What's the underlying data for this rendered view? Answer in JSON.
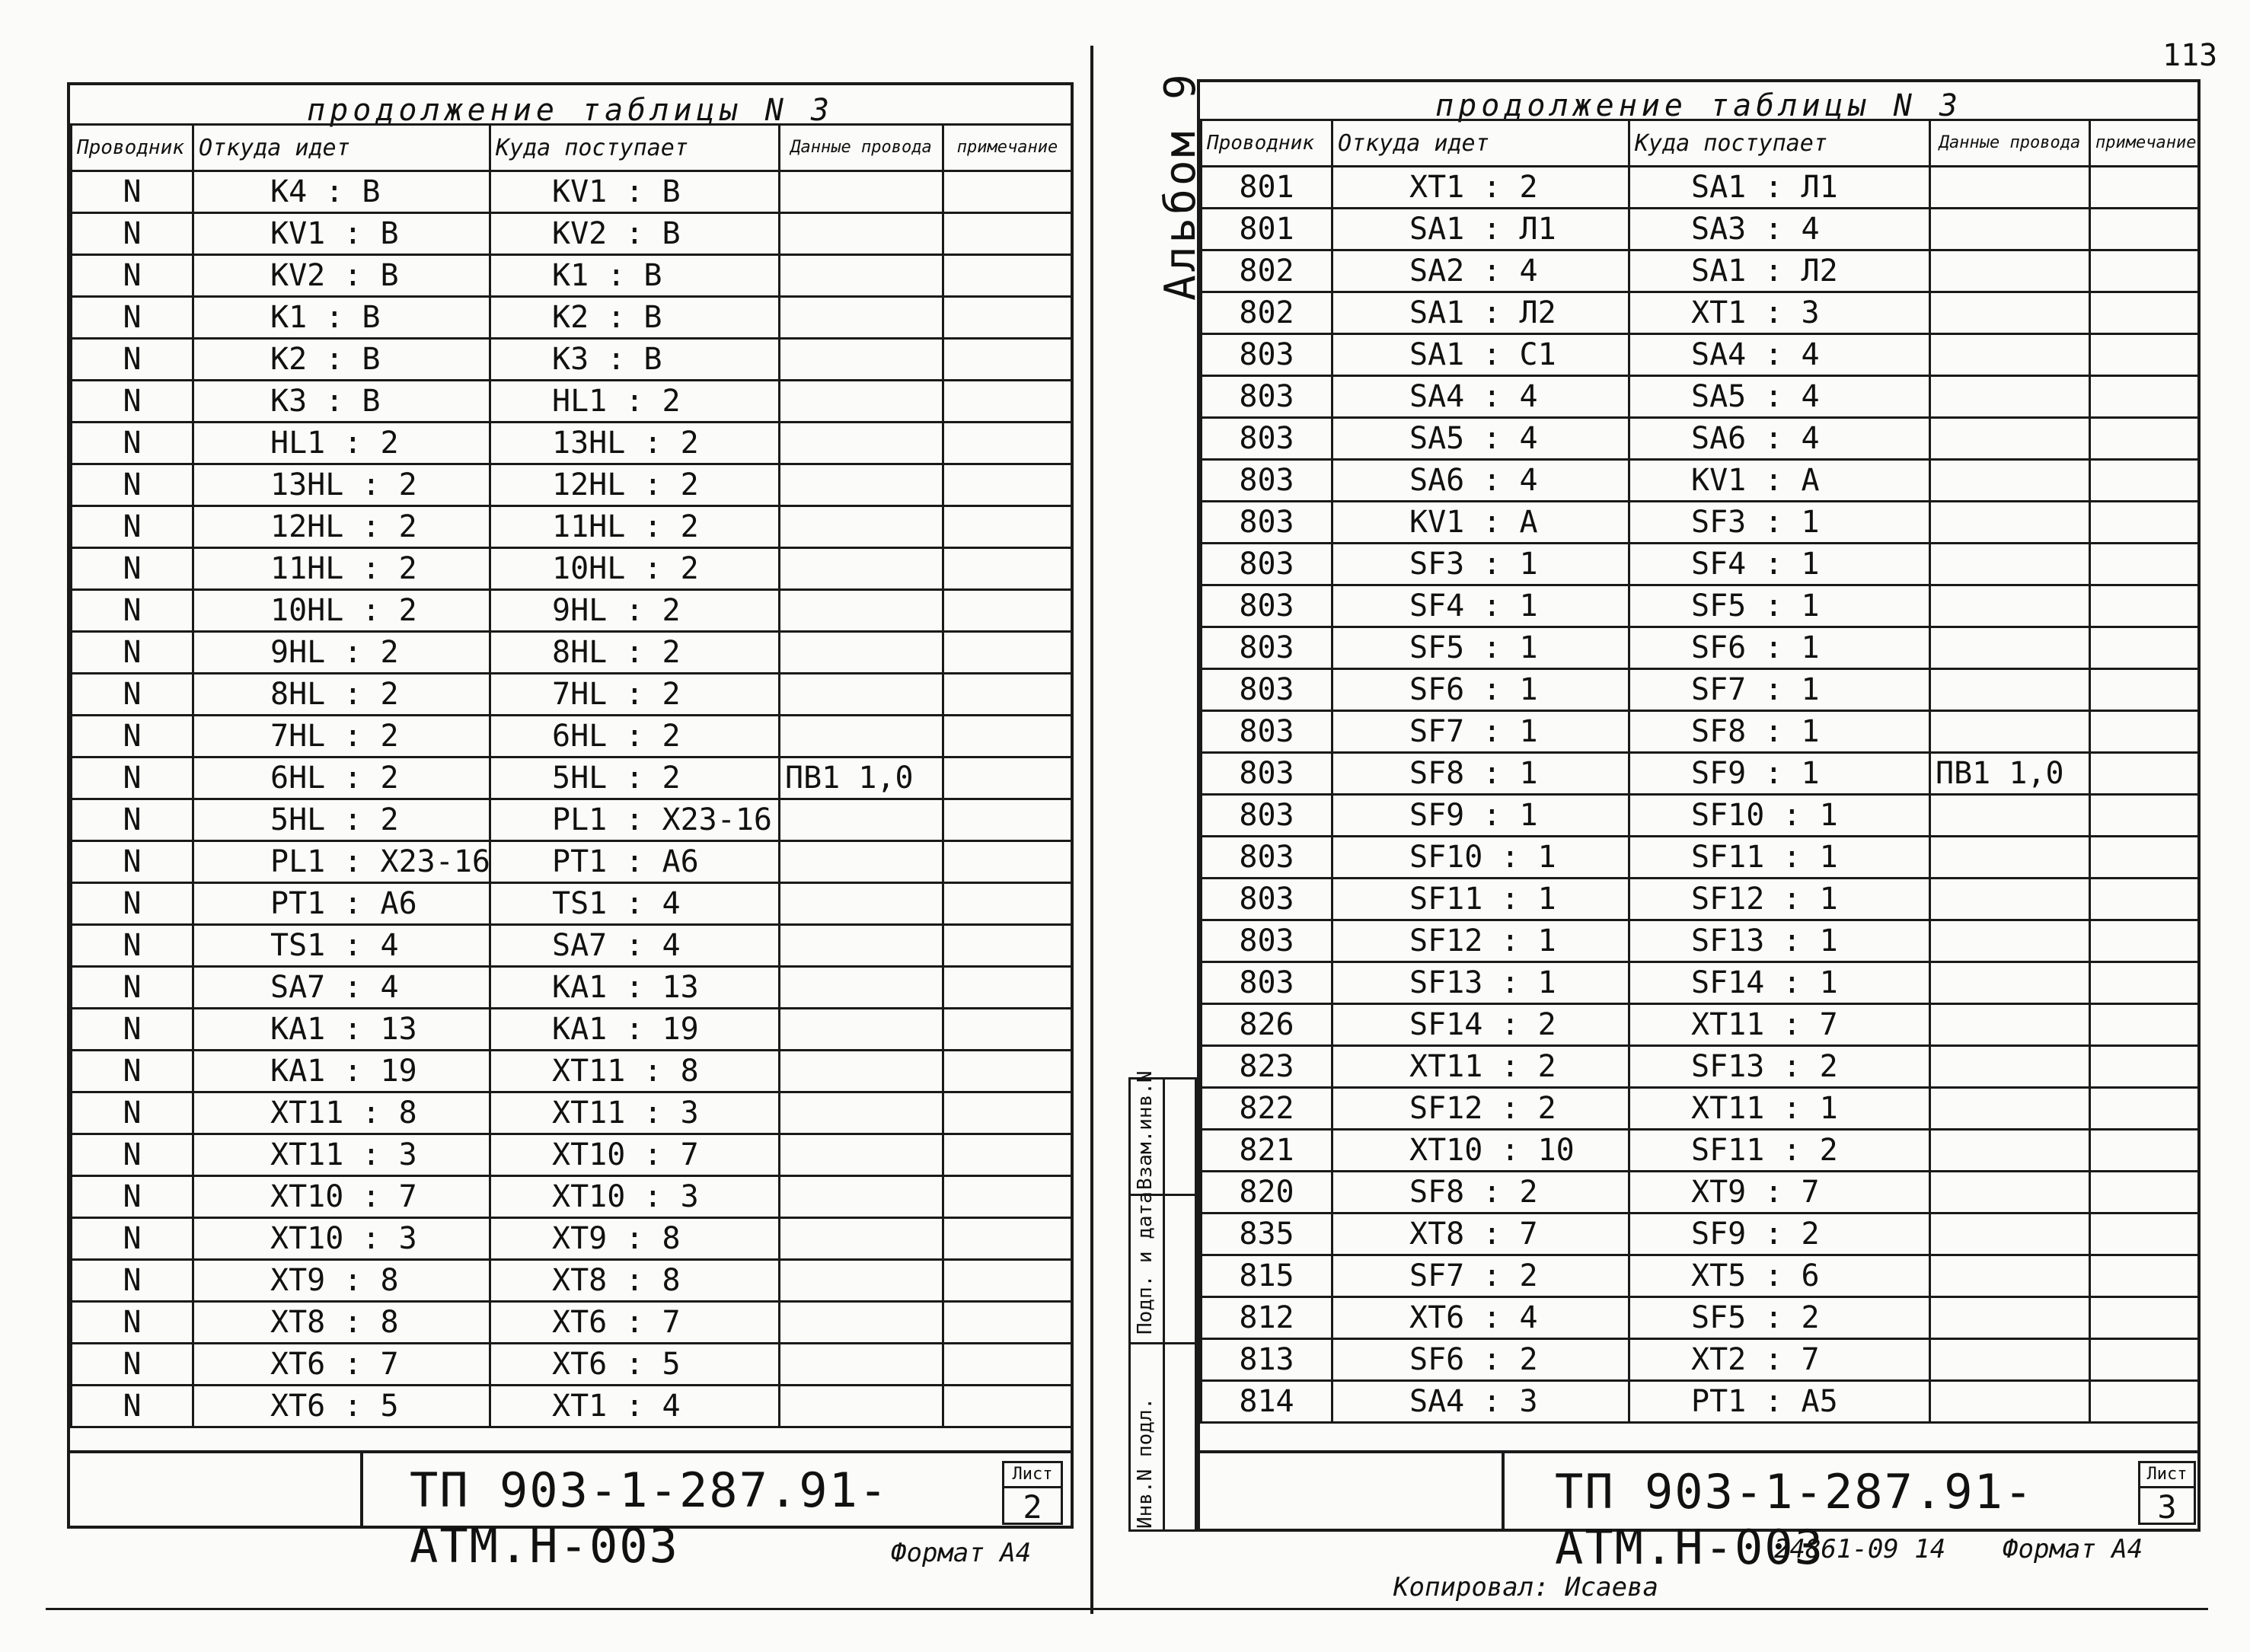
{
  "left_sheet": {
    "title": "продолжение таблицы N 3",
    "headers": {
      "conductor": "Проводник",
      "from": "Откуда идет",
      "to": "Куда поступает",
      "data": "Данные провода",
      "note": "примечание"
    },
    "wire_spec": "ПВ1 1,0",
    "rows": [
      [
        "N",
        "K4 : B",
        "KV1 : B"
      ],
      [
        "N",
        "KV1 : B",
        "KV2 : B"
      ],
      [
        "N",
        "KV2 : B",
        "K1 : B"
      ],
      [
        "N",
        "K1 : B",
        "K2 : B"
      ],
      [
        "N",
        "K2 : B",
        "K3 : B"
      ],
      [
        "N",
        "K3 : B",
        "HL1 : 2"
      ],
      [
        "N",
        "HL1 : 2",
        "13HL : 2"
      ],
      [
        "N",
        "13HL : 2",
        "12HL : 2"
      ],
      [
        "N",
        "12HL : 2",
        "11HL : 2"
      ],
      [
        "N",
        "11HL : 2",
        "10HL : 2"
      ],
      [
        "N",
        "10HL : 2",
        "9HL : 2"
      ],
      [
        "N",
        "9HL : 2",
        "8HL : 2"
      ],
      [
        "N",
        "8HL : 2",
        "7HL : 2"
      ],
      [
        "N",
        "7HL : 2",
        "6HL : 2"
      ],
      [
        "N",
        "6HL : 2",
        "5HL : 2"
      ],
      [
        "N",
        "5HL : 2",
        "PL1 : X23-16"
      ],
      [
        "N",
        "PL1 : X23-16",
        "PT1 : A6"
      ],
      [
        "N",
        "PT1 : A6",
        "TS1 : 4"
      ],
      [
        "N",
        "TS1 : 4",
        "SA7 : 4"
      ],
      [
        "N",
        "SA7 : 4",
        "KA1 : 13"
      ],
      [
        "N",
        "KA1 : 13",
        "KA1 : 19"
      ],
      [
        "N",
        "KA1 : 19",
        "XT11 : 8"
      ],
      [
        "N",
        "XT11 : 8",
        "XT11 : 3"
      ],
      [
        "N",
        "XT11 : 3",
        "XT10 : 7"
      ],
      [
        "N",
        "XT10 : 7",
        "XT10 : 3"
      ],
      [
        "N",
        "XT10 : 3",
        "XT9 : 8"
      ],
      [
        "N",
        "XT9 : 8",
        "XT8 : 8"
      ],
      [
        "N",
        "XT8 : 8",
        "XT6 : 7"
      ],
      [
        "N",
        "XT6 : 7",
        "XT6 : 5"
      ],
      [
        "N",
        "XT6 : 5",
        "XT1 : 4"
      ]
    ],
    "code": "ТП 903-1-287.91- АТМ.Н-003",
    "sheet_label": "Лист",
    "sheet_number": "2",
    "format": "Формат А4"
  },
  "right_sheet": {
    "title": "продолжение таблицы N 3",
    "headers": {
      "conductor": "Проводник",
      "from": "Откуда идет",
      "to": "Куда поступает",
      "data": "Данные провода",
      "note": "примечание"
    },
    "wire_spec": "ПВ1 1,0",
    "rows": [
      [
        "801",
        "XT1 : 2",
        "SA1 : Л1"
      ],
      [
        "801",
        "SA1 : Л1",
        "SA3 : 4"
      ],
      [
        "802",
        "SA2 : 4",
        "SA1 : Л2"
      ],
      [
        "802",
        "SA1 : Л2",
        "XT1 : 3"
      ],
      [
        "803",
        "SA1 : С1",
        "SA4 : 4"
      ],
      [
        "803",
        "SA4 : 4",
        "SA5 : 4"
      ],
      [
        "803",
        "SA5 : 4",
        "SA6 : 4"
      ],
      [
        "803",
        "SA6 : 4",
        "KV1 : A"
      ],
      [
        "803",
        "KV1 : A",
        "SF3 : 1"
      ],
      [
        "803",
        "SF3 : 1",
        "SF4 : 1"
      ],
      [
        "803",
        "SF4 : 1",
        "SF5 : 1"
      ],
      [
        "803",
        "SF5 : 1",
        "SF6 : 1"
      ],
      [
        "803",
        "SF6 : 1",
        "SF7 : 1"
      ],
      [
        "803",
        "SF7 : 1",
        "SF8 : 1"
      ],
      [
        "803",
        "SF8 : 1",
        "SF9 : 1"
      ],
      [
        "803",
        "SF9 : 1",
        "SF10 : 1"
      ],
      [
        "803",
        "SF10 : 1",
        "SF11 : 1"
      ],
      [
        "803",
        "SF11 : 1",
        "SF12 : 1"
      ],
      [
        "803",
        "SF12 : 1",
        "SF13 : 1"
      ],
      [
        "803",
        "SF13 : 1",
        "SF14 : 1"
      ],
      [
        "826",
        "SF14 : 2",
        "XT11 : 7"
      ],
      [
        "823",
        "XT11 : 2",
        "SF13 : 2"
      ],
      [
        "822",
        "SF12 : 2",
        "XT11 : 1"
      ],
      [
        "821",
        "XT10 : 10",
        "SF11 : 2"
      ],
      [
        "820",
        "SF8 : 2",
        "XT9 : 7"
      ],
      [
        "835",
        "XT8 : 7",
        "SF9 : 2"
      ],
      [
        "815",
        "SF7 : 2",
        "XT5 : 6"
      ],
      [
        "812",
        "XT6 : 4",
        "SF5 : 2"
      ],
      [
        "813",
        "SF6 : 2",
        "XT2 : 7"
      ],
      [
        "814",
        "SA4 : 3",
        "PT1 : A5"
      ]
    ],
    "code": "ТП 903-1-287.91- АТМ.Н-003",
    "sheet_label": "Лист",
    "sheet_number": "3",
    "album": "Альбом 9",
    "side_labels": [
      "Инв.N подл.",
      "Подп. и дата",
      "Взам.инв.N"
    ],
    "order_number": "24861-09 14",
    "format": "Формат А4",
    "copied_by": "Копировал: Исаева",
    "page_number": "113"
  }
}
